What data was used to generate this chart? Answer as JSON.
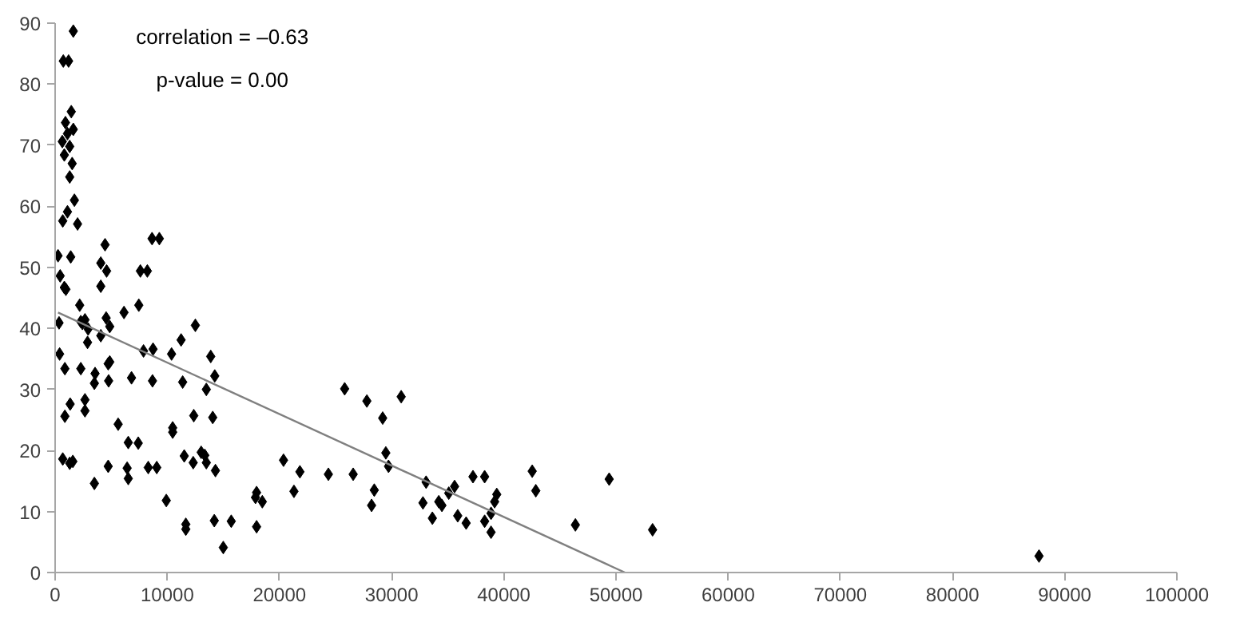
{
  "chart_data": {
    "type": "scatter",
    "annotations": [
      "correlation = –0.63",
      "p-value = 0.00"
    ],
    "xlim": [
      0,
      100000
    ],
    "xticks": [
      0,
      10000,
      20000,
      30000,
      40000,
      50000,
      60000,
      70000,
      80000,
      90000,
      100000
    ],
    "ylim": [
      0,
      90
    ],
    "yticks": [
      0,
      10,
      20,
      30,
      40,
      50,
      60,
      70,
      80,
      90
    ],
    "series": [
      {
        "color": "#000000",
        "marker": "diamond",
        "x": [
          1620,
          730,
          1200,
          1440,
          920,
          1620,
          1100,
          640,
          1300,
          820,
          1520,
          1300,
          1720,
          1100,
          680,
          2000,
          260,
          1390,
          450,
          820,
          960,
          4450,
          4070,
          4590,
          4070,
          7600,
          8220,
          8640,
          9290,
          2190,
          6140,
          7460,
          350,
          2290,
          2660,
          2430,
          2940,
          4070,
          4550,
          4870,
          2890,
          400,
          870,
          2290,
          3560,
          3500,
          4870,
          4730,
          4770,
          6810,
          8680,
          7880,
          8730,
          10380,
          11370,
          11230,
          12500,
          13870,
          14230,
          13480,
          12360,
          14050,
          13020,
          13340,
          12310,
          13480,
          14290,
          14190,
          15700,
          14990,
          17960,
          17860,
          18470,
          17960,
          20360,
          21820,
          21290,
          24360,
          26570,
          25810,
          27790,
          30850,
          29200,
          29480,
          29720,
          28450,
          28210,
          5620,
          6520,
          7410,
          6420,
          6520,
          4730,
          3500,
          8300,
          9060,
          9910,
          10480,
          10480,
          11510,
          11650,
          11650,
          870,
          1340,
          2660,
          2660,
          680,
          1300,
          1580,
          33070,
          32790,
          33630,
          34200,
          34480,
          35090,
          35610,
          35890,
          36640,
          37250,
          38290,
          38290,
          38860,
          38860,
          39180,
          39370,
          42530,
          42850,
          46380,
          49390,
          53260,
          87710
        ],
        "values": [
          88.7,
          83.8,
          83.8,
          75.5,
          73.7,
          72.6,
          71.9,
          70.6,
          69.8,
          68.4,
          67.0,
          64.8,
          61.0,
          59.1,
          57.6,
          57.1,
          51.9,
          51.7,
          48.6,
          46.7,
          46.4,
          53.7,
          50.7,
          49.4,
          46.9,
          49.4,
          49.4,
          54.7,
          54.7,
          43.8,
          42.6,
          43.8,
          40.9,
          41.1,
          41.4,
          40.8,
          39.9,
          38.8,
          41.7,
          40.3,
          37.7,
          35.8,
          33.4,
          33.4,
          32.6,
          31.0,
          34.5,
          34.2,
          31.4,
          31.9,
          31.4,
          36.3,
          36.6,
          35.8,
          31.2,
          38.1,
          40.5,
          35.4,
          32.2,
          30.0,
          25.7,
          25.4,
          19.7,
          19.2,
          18.0,
          18.0,
          16.7,
          8.5,
          8.4,
          4.1,
          13.1,
          12.3,
          11.6,
          7.5,
          18.4,
          16.5,
          13.3,
          16.1,
          16.1,
          30.1,
          28.1,
          28.8,
          25.3,
          19.6,
          17.4,
          13.5,
          11.0,
          24.3,
          21.3,
          21.2,
          17.1,
          15.4,
          17.4,
          14.6,
          17.2,
          17.2,
          11.8,
          23.7,
          23.0,
          19.1,
          7.9,
          7.1,
          25.6,
          27.6,
          26.5,
          28.3,
          18.6,
          17.9,
          18.2,
          14.8,
          11.4,
          8.9,
          11.6,
          11.0,
          13.0,
          14.1,
          9.3,
          8.1,
          15.7,
          15.7,
          8.4,
          9.7,
          6.6,
          11.6,
          12.8,
          16.6,
          13.4,
          7.8,
          15.3,
          7.0,
          2.7
        ]
      },
      {
        "type": "line",
        "color": "#808080",
        "x": [
          260,
          50800
        ],
        "values": [
          42.6,
          0
        ]
      }
    ]
  }
}
